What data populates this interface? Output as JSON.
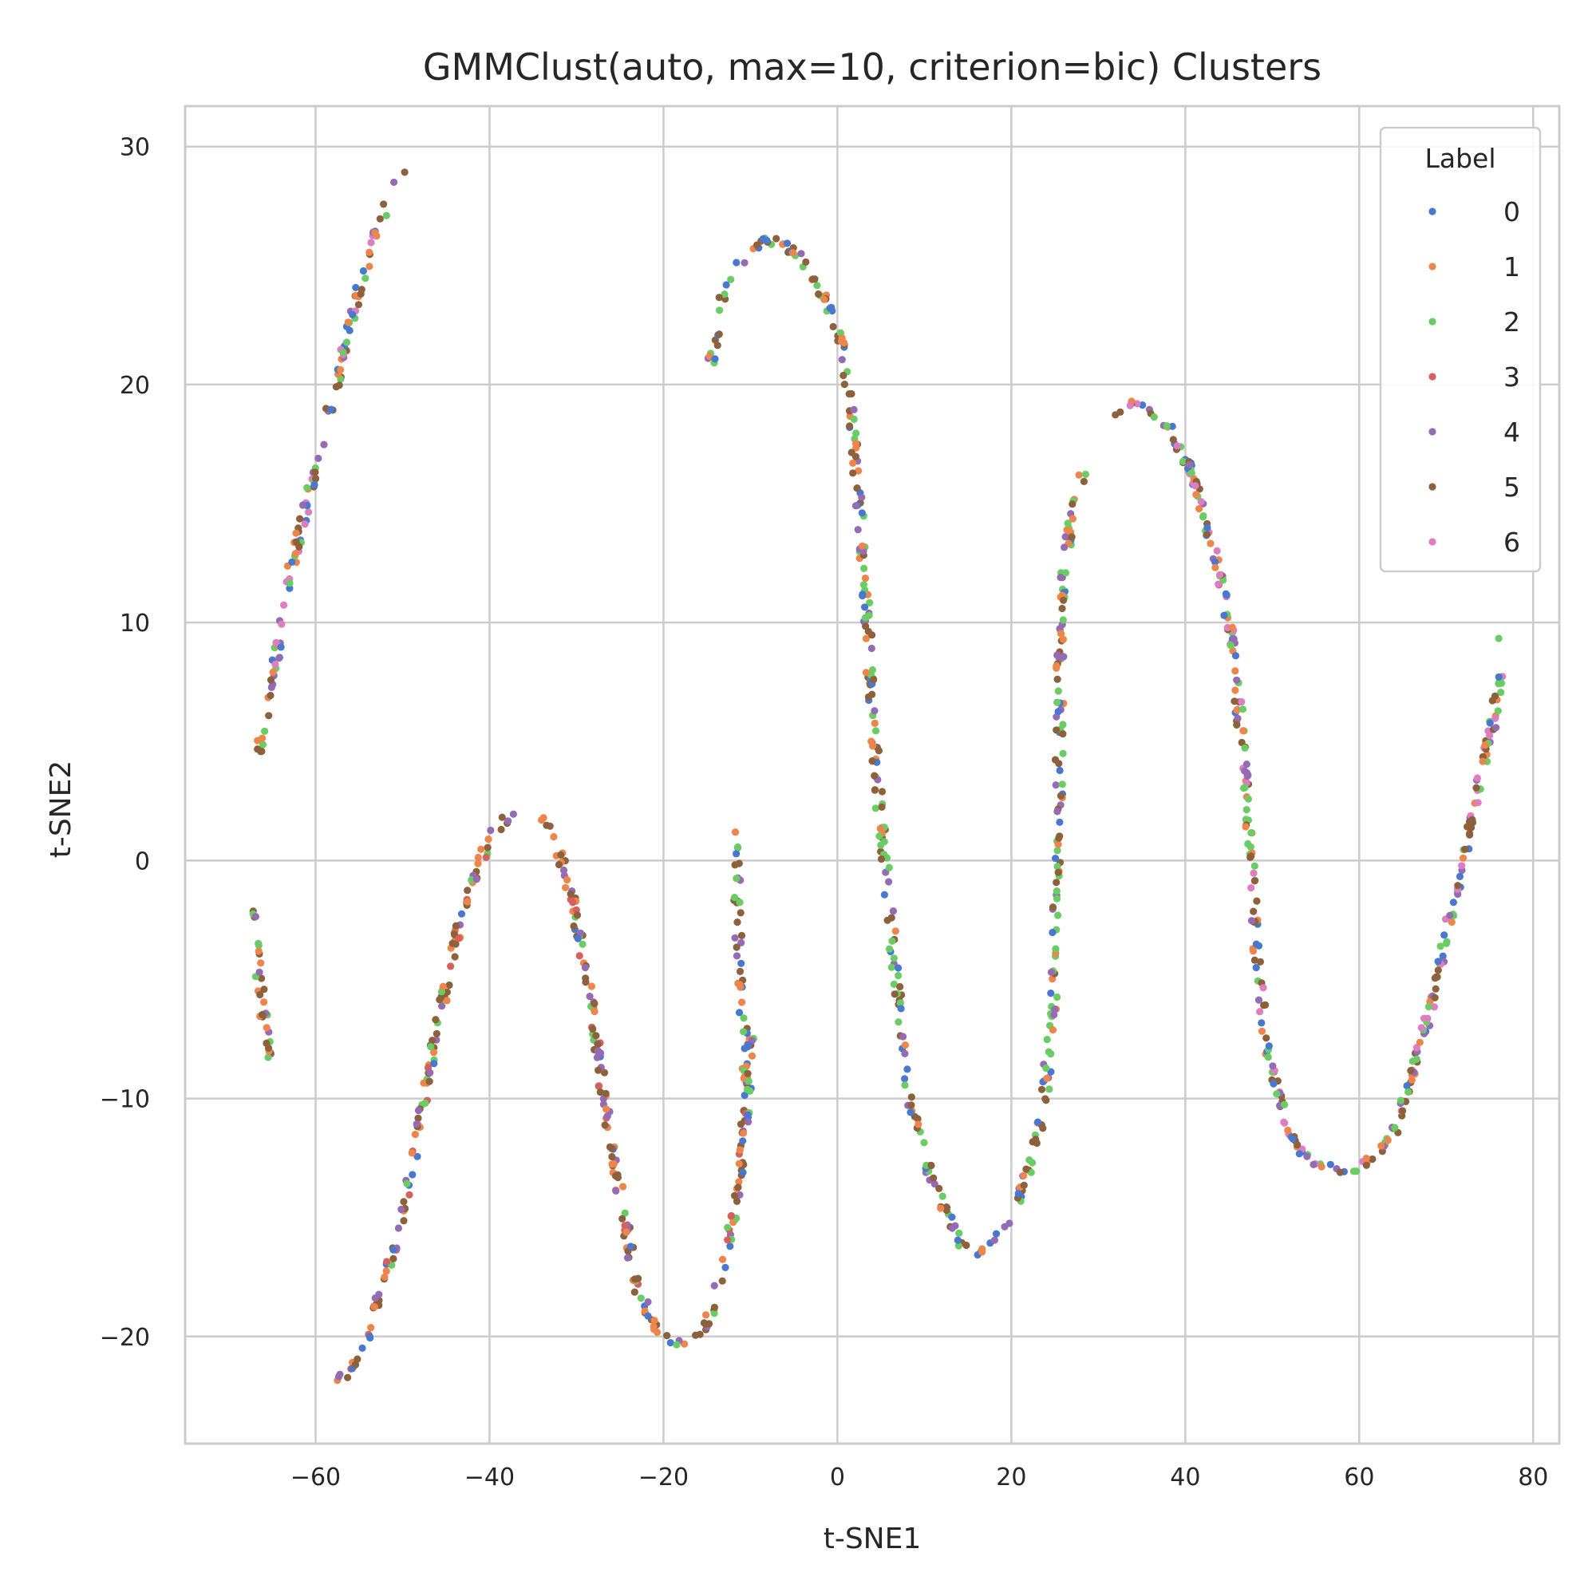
{
  "chart_data": {
    "type": "scatter",
    "title": "GMMClust(auto, max=10, criterion=bic) Clusters",
    "xlabel": "t-SNE1",
    "ylabel": "t-SNE2",
    "xlim": [
      -75,
      83
    ],
    "ylim": [
      -24.5,
      31.7
    ],
    "xticks": [
      -60,
      -40,
      -20,
      0,
      20,
      40,
      60,
      80
    ],
    "xtick_labels": [
      "−60",
      "−40",
      "−20",
      "0",
      "20",
      "40",
      "60",
      "80"
    ],
    "yticks": [
      -20,
      -10,
      0,
      10,
      20,
      30
    ],
    "ytick_labels": [
      "−20",
      "−10",
      "0",
      "10",
      "20",
      "30"
    ],
    "grid": true,
    "legend": {
      "title": "Label",
      "placement": "top-right",
      "entries": [
        {
          "label": "0",
          "color": "#4878d0"
        },
        {
          "label": "1",
          "color": "#ee854a"
        },
        {
          "label": "2",
          "color": "#6acc64"
        },
        {
          "label": "3",
          "color": "#d65f5f"
        },
        {
          "label": "4",
          "color": "#956cb4"
        },
        {
          "label": "5",
          "color": "#8c613c"
        },
        {
          "label": "6",
          "color": "#dc7ec0"
        }
      ]
    },
    "segments": [
      {
        "points": [
          [
            -66.5,
            4.5
          ],
          [
            -65,
            7.5
          ],
          [
            -63,
            12
          ],
          [
            -61,
            15
          ],
          [
            -59,
            18
          ],
          [
            -57,
            21
          ],
          [
            -55,
            24
          ],
          [
            -53,
            26.5
          ],
          [
            -51,
            28.3
          ],
          [
            -49,
            29
          ]
        ],
        "count": 120,
        "labels": [
          5,
          5,
          2,
          1,
          4,
          0,
          6
        ]
      },
      {
        "points": [
          [
            -66.8,
            -2
          ],
          [
            -66.5,
            -5
          ],
          [
            -66,
            -6.5
          ],
          [
            -65.5,
            -8.3
          ]
        ],
        "count": 30,
        "labels": [
          5,
          5,
          2,
          1,
          4
        ]
      },
      {
        "points": [
          [
            -58.5,
            -22
          ],
          [
            -56,
            -21.5
          ],
          [
            -54,
            -20
          ],
          [
            -52,
            -17.5
          ],
          [
            -50,
            -15
          ],
          [
            -48,
            -11
          ],
          [
            -46,
            -7
          ],
          [
            -44,
            -3.5
          ],
          [
            -42,
            -1
          ],
          [
            -40,
            1
          ],
          [
            -38,
            1.8
          ],
          [
            -35.5,
            2.2
          ],
          [
            -33,
            1.3
          ],
          [
            -31,
            -0.8
          ],
          [
            -29,
            -4.5
          ],
          [
            -27,
            -9.5
          ],
          [
            -25,
            -14
          ],
          [
            -23,
            -18
          ],
          [
            -21,
            -19.5
          ],
          [
            -19,
            -20.2
          ],
          [
            -17,
            -20.6
          ],
          [
            -15,
            -19.5
          ],
          [
            -13,
            -17
          ],
          [
            -11.5,
            -14
          ],
          [
            -10.5,
            -10.5
          ],
          [
            -10,
            -7
          ]
        ],
        "count": 330,
        "labels": [
          5,
          5,
          5,
          2,
          1,
          1,
          4,
          0,
          3
        ]
      },
      {
        "points": [
          [
            -11.8,
            1.3
          ],
          [
            -11.5,
            -2
          ],
          [
            -11,
            -5.5
          ],
          [
            -10.5,
            -9
          ],
          [
            -10.2,
            -11
          ]
        ],
        "count": 45,
        "labels": [
          5,
          5,
          1,
          2,
          4,
          0
        ]
      },
      {
        "points": [
          [
            -14.8,
            20.5
          ],
          [
            -14,
            22
          ],
          [
            -13,
            24
          ],
          [
            -11,
            25.2
          ],
          [
            -9,
            26
          ],
          [
            -7,
            26
          ],
          [
            -5,
            25.6
          ],
          [
            -3,
            24.8
          ],
          [
            -1,
            23.2
          ],
          [
            0.5,
            21.5
          ],
          [
            1.5,
            19
          ],
          [
            2.5,
            15
          ],
          [
            3.3,
            11
          ],
          [
            4,
            6
          ],
          [
            5,
            1.5
          ],
          [
            6,
            -2
          ],
          [
            7,
            -6
          ],
          [
            8,
            -9.5
          ],
          [
            10,
            -12.5
          ],
          [
            12,
            -14.5
          ],
          [
            14.5,
            -16.3
          ],
          [
            16.5,
            -16.6
          ],
          [
            18.5,
            -15.8
          ],
          [
            20.5,
            -14.5
          ],
          [
            22.5,
            -12.5
          ],
          [
            23.8,
            -10
          ],
          [
            24.8,
            -6
          ],
          [
            25.3,
            -1
          ],
          [
            25.5,
            4
          ],
          [
            25.6,
            8.5
          ],
          [
            26,
            12
          ],
          [
            27,
            14.5
          ],
          [
            28.3,
            16.4
          ]
        ],
        "count": 400,
        "labels": [
          5,
          2,
          2,
          1,
          5,
          4,
          0
        ]
      },
      {
        "points": [
          [
            32,
            18.6
          ],
          [
            34,
            19.3
          ],
          [
            36,
            19
          ],
          [
            38.5,
            18
          ],
          [
            40.5,
            16.5
          ],
          [
            42.5,
            14
          ],
          [
            44,
            12
          ],
          [
            45.5,
            9
          ],
          [
            46.5,
            5
          ],
          [
            47.5,
            1
          ],
          [
            48,
            -3
          ],
          [
            49,
            -6.5
          ],
          [
            50,
            -9
          ],
          [
            52,
            -11.5
          ],
          [
            54,
            -12.5
          ],
          [
            57,
            -13
          ],
          [
            59.5,
            -13
          ],
          [
            61.5,
            -12.5
          ],
          [
            64,
            -11.5
          ],
          [
            66,
            -9
          ],
          [
            68,
            -6.5
          ],
          [
            70,
            -3
          ],
          [
            72,
            0
          ],
          [
            74,
            3.5
          ],
          [
            75.5,
            6
          ],
          [
            76.2,
            8
          ],
          [
            75.5,
            9.6
          ],
          [
            74.5,
            9.8
          ]
        ],
        "count": 340,
        "labels": [
          5,
          2,
          2,
          1,
          5,
          4,
          6,
          0
        ]
      }
    ]
  }
}
